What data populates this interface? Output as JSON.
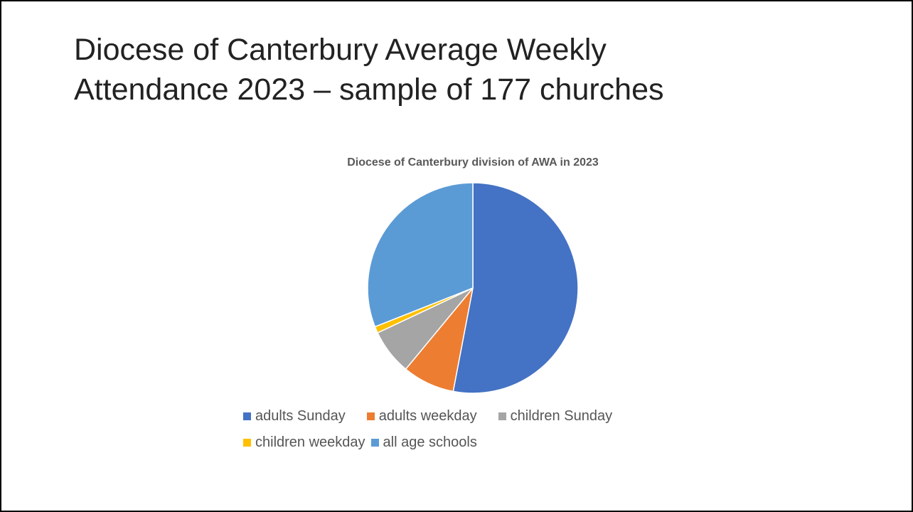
{
  "slide_title": [
    "Diocese of Canterbury Average Weekly",
    "Attendance 2023 – sample of 177 churches"
  ],
  "chart_data": {
    "type": "pie",
    "title": "Diocese of Canterbury division of AWA in 2023",
    "categories": [
      "adults Sunday",
      "adults weekday",
      "children Sunday",
      "children weekday",
      "all age schools"
    ],
    "values": [
      53,
      8,
      7,
      1,
      31
    ],
    "colors": [
      "#4472c4",
      "#ed7d31",
      "#a5a5a5",
      "#ffc000",
      "#5b9bd5"
    ],
    "legend": "bottom"
  }
}
